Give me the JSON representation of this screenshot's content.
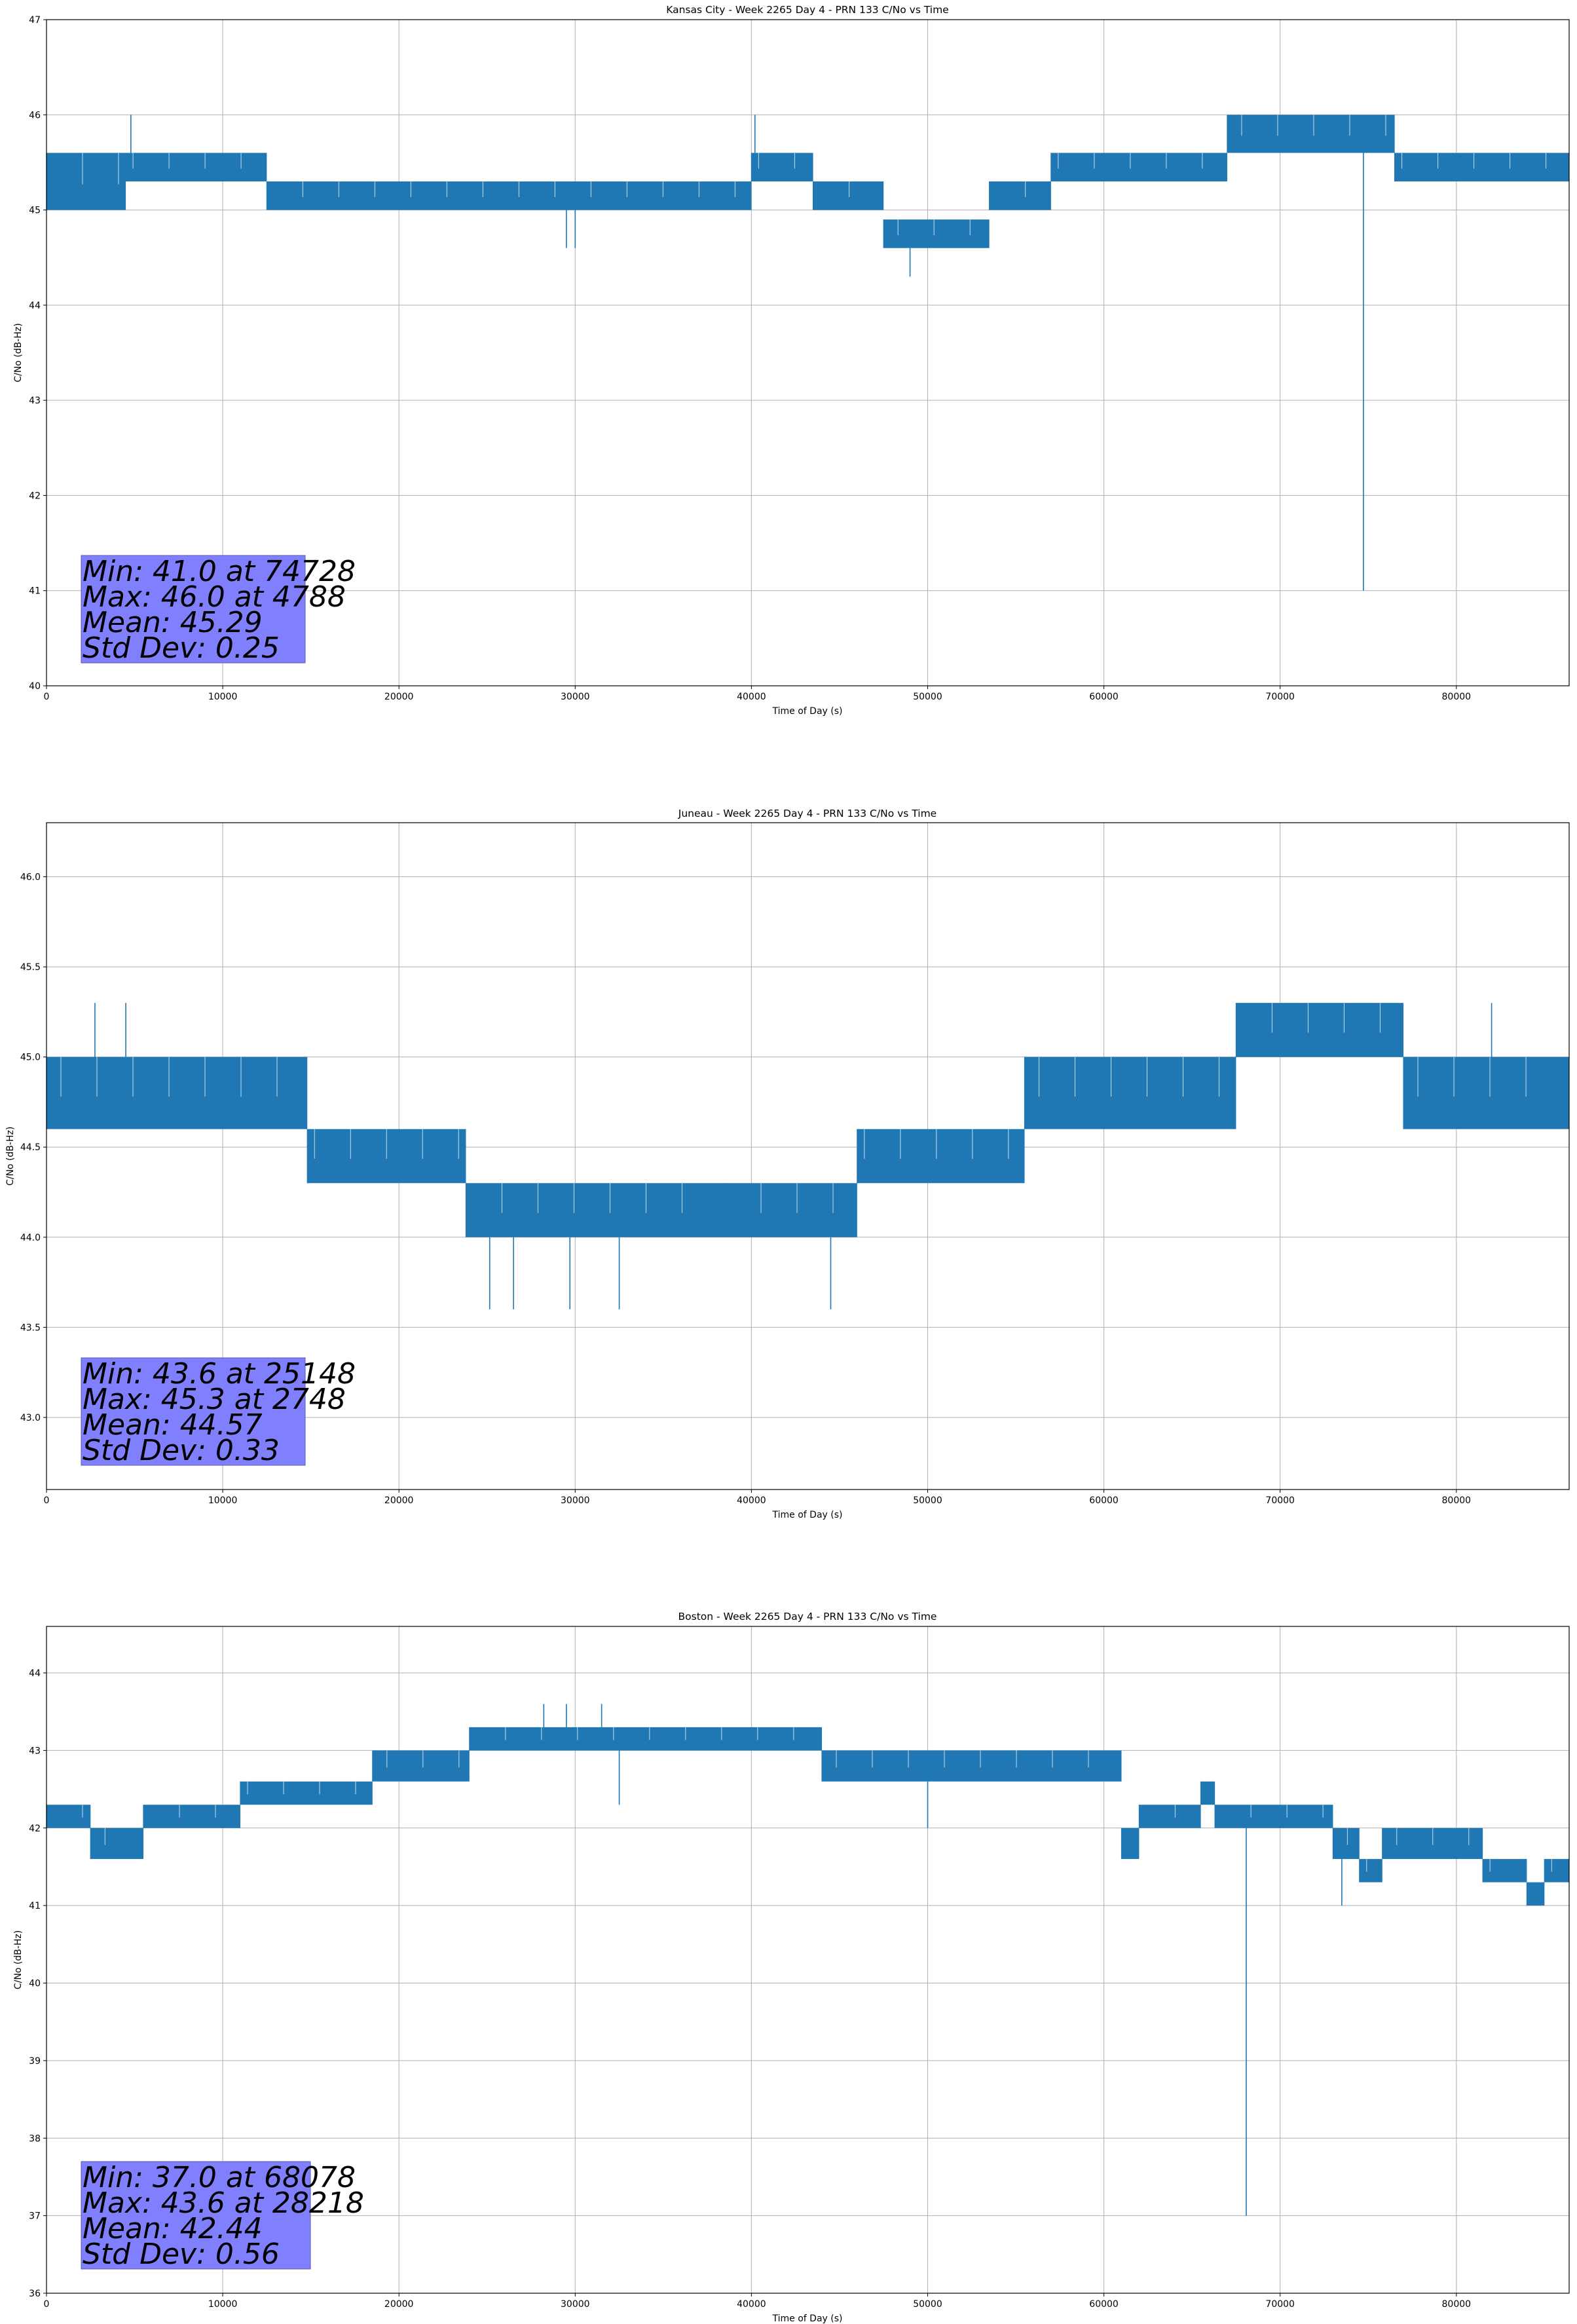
{
  "chart_data": [
    {
      "type": "line",
      "title": "Kansas City - Week 2265 Day 4 - PRN 133 C/No vs Time",
      "xlabel": "Time of Day (s)",
      "ylabel": "C/No (dB-Hz)",
      "xlim": [
        0,
        86400
      ],
      "ylim": [
        40,
        47
      ],
      "xticks": [
        0,
        10000,
        20000,
        30000,
        40000,
        50000,
        60000,
        70000,
        80000
      ],
      "yticks": [
        40,
        41,
        42,
        43,
        44,
        45,
        46,
        47
      ],
      "ytick_labels": [
        "40",
        "41",
        "42",
        "43",
        "44",
        "45",
        "46",
        "47"
      ],
      "grid": true,
      "line_color": "#1f77b4",
      "stats": [
        "Min: 41.0 at 74728",
        "Max: 46.0 at 4788",
        "Mean: 45.29",
        "Std Dev: 0.25"
      ],
      "segments": [
        {
          "x": [
            0,
            4500
          ],
          "low": 45.0,
          "high": 45.6
        },
        {
          "x": [
            4500,
            12500
          ],
          "low": 45.3,
          "high": 45.6
        },
        {
          "x": [
            12500,
            40000
          ],
          "low": 45.0,
          "high": 45.3
        },
        {
          "x": [
            40000,
            43500
          ],
          "low": 45.3,
          "high": 45.6
        },
        {
          "x": [
            43500,
            47500
          ],
          "low": 45.0,
          "high": 45.3
        },
        {
          "x": [
            47500,
            53500
          ],
          "low": 44.6,
          "high": 44.9
        },
        {
          "x": [
            53500,
            57000
          ],
          "low": 45.0,
          "high": 45.3
        },
        {
          "x": [
            57000,
            67000
          ],
          "low": 45.3,
          "high": 45.6
        },
        {
          "x": [
            67000,
            76500
          ],
          "low": 45.6,
          "high": 46.0
        },
        {
          "x": [
            76500,
            86400
          ],
          "low": 45.3,
          "high": 45.6
        }
      ],
      "spikes": [
        [
          4788,
          46.0
        ],
        [
          29500,
          44.6
        ],
        [
          30000,
          44.6
        ],
        [
          40200,
          46.0
        ],
        [
          49000,
          44.3
        ],
        [
          74728,
          41.0
        ]
      ]
    },
    {
      "type": "line",
      "title": "Juneau - Week 2265 Day 4 - PRN 133 C/No vs Time",
      "xlabel": "Time of Day (s)",
      "ylabel": "C/No (dB-Hz)",
      "xlim": [
        0,
        86400
      ],
      "ylim": [
        42.6,
        46.3
      ],
      "xticks": [
        0,
        10000,
        20000,
        30000,
        40000,
        50000,
        60000,
        70000,
        80000
      ],
      "yticks": [
        43.0,
        43.5,
        44.0,
        44.5,
        45.0,
        45.5,
        46.0
      ],
      "ytick_labels": [
        "43.0",
        "43.5",
        "44.0",
        "44.5",
        "45.0",
        "45.5",
        "46.0"
      ],
      "grid": true,
      "line_color": "#1f77b4",
      "stats": [
        "Min: 43.6 at 25148",
        "Max: 45.3 at 2748",
        "Mean: 44.57",
        "Std Dev: 0.33"
      ],
      "segments": [
        {
          "x": [
            0,
            14800
          ],
          "low": 44.6,
          "high": 45.0
        },
        {
          "x": [
            14800,
            23800
          ],
          "low": 44.3,
          "high": 44.6
        },
        {
          "x": [
            23800,
            38500
          ],
          "low": 44.0,
          "high": 44.3
        },
        {
          "x": [
            38500,
            46000
          ],
          "low": 44.0,
          "high": 44.3
        },
        {
          "x": [
            46000,
            55500
          ],
          "low": 44.3,
          "high": 44.6
        },
        {
          "x": [
            55500,
            67500
          ],
          "low": 44.6,
          "high": 45.0
        },
        {
          "x": [
            67500,
            77000
          ],
          "low": 45.0,
          "high": 45.3
        },
        {
          "x": [
            77000,
            86400
          ],
          "low": 44.6,
          "high": 45.0
        }
      ],
      "spikes": [
        [
          2748,
          45.3
        ],
        [
          4500,
          45.3
        ],
        [
          25148,
          43.6
        ],
        [
          26500,
          43.6
        ],
        [
          29700,
          43.6
        ],
        [
          32500,
          43.6
        ],
        [
          44500,
          43.6
        ],
        [
          71000,
          45.3
        ],
        [
          82000,
          45.3
        ]
      ]
    },
    {
      "type": "line",
      "title": "Boston - Week 2265 Day 4 - PRN 133 C/No vs Time",
      "xlabel": "Time of Day (s)",
      "ylabel": "C/No (dB-Hz)",
      "xlim": [
        0,
        86400
      ],
      "ylim": [
        36,
        44.6
      ],
      "xticks": [
        0,
        10000,
        20000,
        30000,
        40000,
        50000,
        60000,
        70000,
        80000
      ],
      "yticks": [
        36,
        37,
        38,
        39,
        40,
        41,
        42,
        43,
        44
      ],
      "ytick_labels": [
        "36",
        "37",
        "38",
        "39",
        "40",
        "41",
        "42",
        "43",
        "44"
      ],
      "grid": true,
      "line_color": "#1f77b4",
      "stats": [
        "Min: 37.0 at 68078",
        "Max: 43.6 at 28218",
        "Mean: 42.44",
        "Std Dev: 0.56"
      ],
      "segments": [
        {
          "x": [
            0,
            2500
          ],
          "low": 42.0,
          "high": 42.3
        },
        {
          "x": [
            2500,
            5500
          ],
          "low": 41.6,
          "high": 42.0
        },
        {
          "x": [
            5500,
            11000
          ],
          "low": 42.0,
          "high": 42.3
        },
        {
          "x": [
            11000,
            18500
          ],
          "low": 42.3,
          "high": 42.6
        },
        {
          "x": [
            18500,
            24000
          ],
          "low": 42.6,
          "high": 43.0
        },
        {
          "x": [
            24000,
            44000
          ],
          "low": 43.0,
          "high": 43.3
        },
        {
          "x": [
            44000,
            61000
          ],
          "low": 42.6,
          "high": 43.0
        },
        {
          "x": [
            61000,
            62000
          ],
          "low": 41.6,
          "high": 42.0
        },
        {
          "x": [
            62000,
            65500
          ],
          "low": 42.0,
          "high": 42.3
        },
        {
          "x": [
            65500,
            66300
          ],
          "low": 42.3,
          "high": 42.6
        },
        {
          "x": [
            66300,
            73000
          ],
          "low": 42.0,
          "high": 42.3
        },
        {
          "x": [
            73000,
            74500
          ],
          "low": 41.6,
          "high": 42.0
        },
        {
          "x": [
            74500,
            75800
          ],
          "low": 41.3,
          "high": 41.6
        },
        {
          "x": [
            75800,
            81500
          ],
          "low": 41.6,
          "high": 42.0
        },
        {
          "x": [
            81500,
            84000
          ],
          "low": 41.3,
          "high": 41.6
        },
        {
          "x": [
            84000,
            85000
          ],
          "low": 41.0,
          "high": 41.3
        },
        {
          "x": [
            85000,
            86400
          ],
          "low": 41.3,
          "high": 41.6
        }
      ],
      "spikes": [
        [
          28218,
          43.6
        ],
        [
          29500,
          43.6
        ],
        [
          31500,
          43.6
        ],
        [
          32500,
          42.3
        ],
        [
          50000,
          42.0
        ],
        [
          68078,
          37.0
        ],
        [
          73500,
          41.0
        ]
      ]
    }
  ]
}
